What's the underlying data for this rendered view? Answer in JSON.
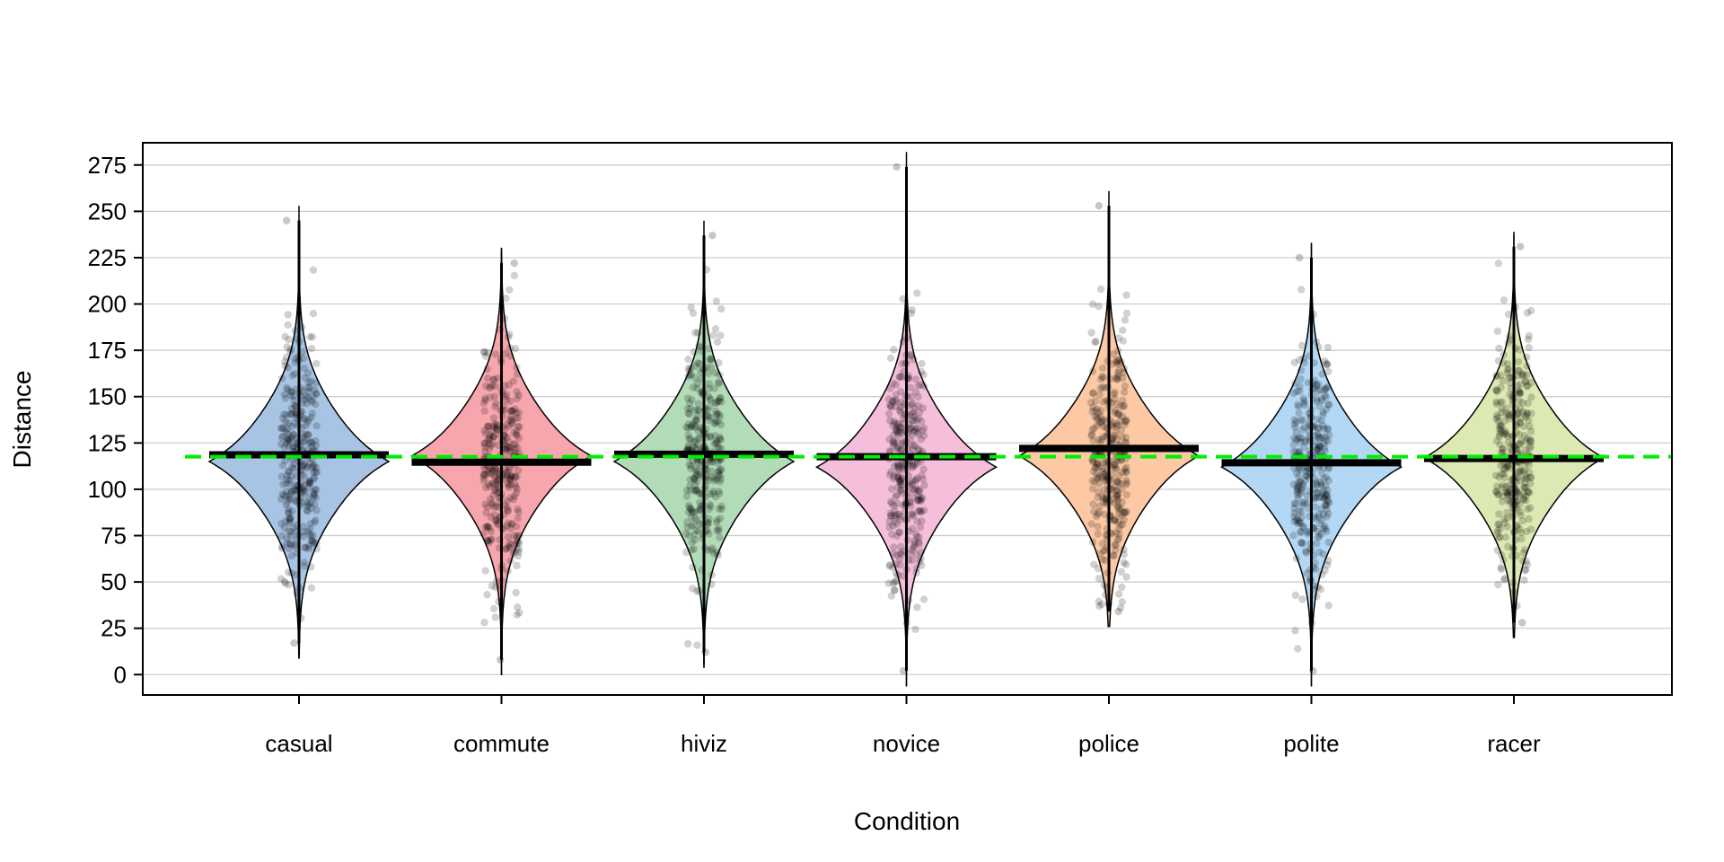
{
  "chart_data": {
    "type": "pirate",
    "title": "",
    "xlabel": "Condition",
    "ylabel": "Distance",
    "ylim": [
      -11,
      287
    ],
    "yticks": [
      0,
      25,
      50,
      75,
      100,
      125,
      150,
      175,
      200,
      225,
      250,
      275
    ],
    "grid": true,
    "overall_mean": 117.6,
    "overall_mean_color": "#00ee00",
    "categories": [
      "casual",
      "commute",
      "hiviz",
      "novice",
      "police",
      "polite",
      "racer"
    ],
    "series": [
      {
        "name": "casual",
        "mean": 118.6,
        "min": 17,
        "max": 245,
        "mode": 115,
        "fill": "#a8c4e4"
      },
      {
        "name": "commute",
        "mean": 114.6,
        "min": 8,
        "max": 222,
        "mode": 118,
        "fill": "#f7a6ad"
      },
      {
        "name": "hiviz",
        "mean": 118.9,
        "min": 12,
        "max": 237,
        "mode": 115,
        "fill": "#b2dbb8"
      },
      {
        "name": "novice",
        "mean": 117.6,
        "min": 2,
        "max": 274,
        "mode": 112,
        "fill": "#f5bedb"
      },
      {
        "name": "police",
        "mean": 122.1,
        "min": 34,
        "max": 253,
        "mode": 118,
        "fill": "#fdc9a5"
      },
      {
        "name": "polite",
        "mean": 114.3,
        "min": 2,
        "max": 225,
        "mode": 112,
        "fill": "#b3d8f5"
      },
      {
        "name": "racer",
        "mean": 116.6,
        "min": 28,
        "max": 231,
        "mode": 117,
        "fill": "#dde9b2"
      }
    ]
  }
}
